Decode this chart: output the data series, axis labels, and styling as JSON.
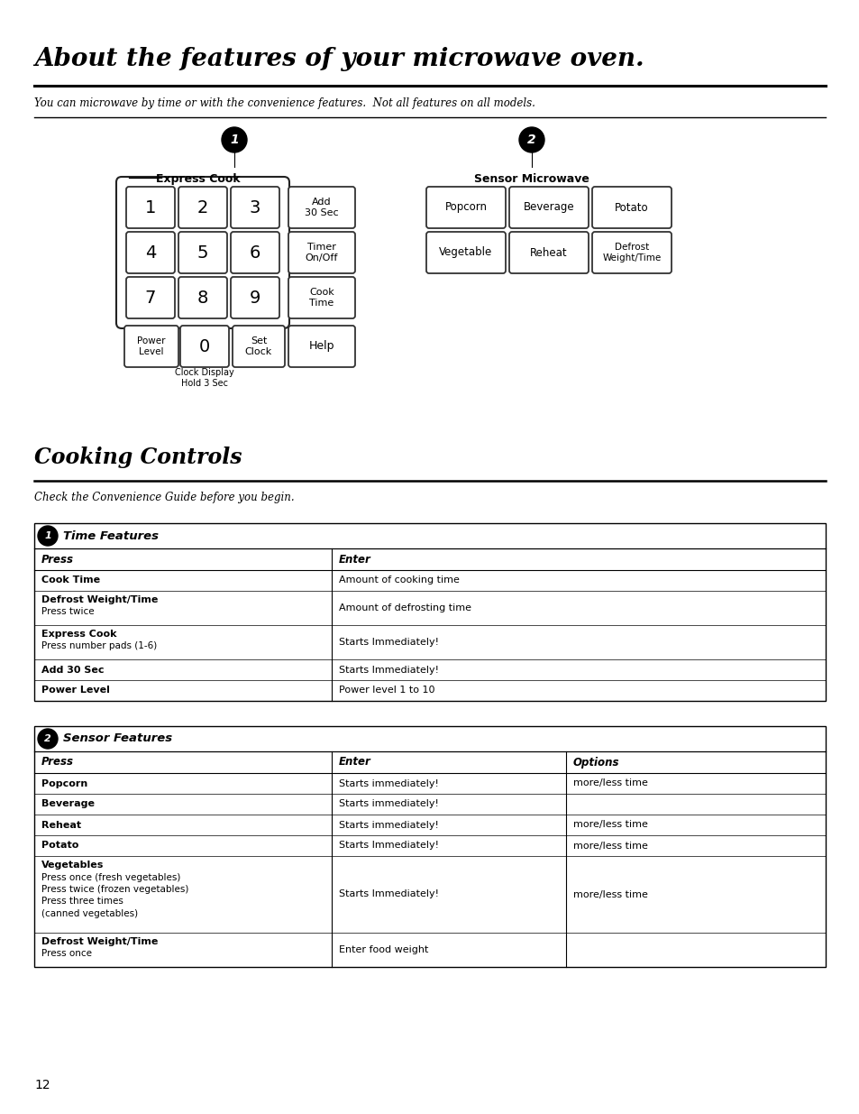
{
  "title": "About the features of your microwave oven.",
  "subtitle": "You can microwave by time or with the convenience features.  Not all features on all models.",
  "section2_title": "Cooking Controls",
  "section2_subtitle": "Check the Convenience Guide before you begin.",
  "table1_header_label": "Time Features",
  "table1_col1_header": "Press",
  "table1_col2_header": "Enter",
  "table1_rows": [
    [
      "Cook Time",
      "Amount of cooking time"
    ],
    [
      "Defrost Weight/Time\nPress twice",
      "Amount of defrosting time"
    ],
    [
      "Express Cook\nPress number pads (1-6)",
      "Starts Immediately!"
    ],
    [
      "Add 30 Sec",
      "Starts Immediately!"
    ],
    [
      "Power Level",
      "Power level 1 to 10"
    ]
  ],
  "table2_header_label": "Sensor Features",
  "table2_col1_header": "Press",
  "table2_col2_header": "Enter",
  "table2_col3_header": "Options",
  "table2_rows": [
    [
      "Popcorn",
      "Starts immediately!",
      "more/less time"
    ],
    [
      "Beverage",
      "Starts immediately!",
      ""
    ],
    [
      "Reheat",
      "Starts immediately!",
      "more/less time"
    ],
    [
      "Potato",
      "Starts Immediately!",
      "more/less time"
    ],
    [
      "Vegetables\nPress once (fresh vegetables)\nPress twice (frozen vegetables)\nPress three times\n(canned vegetables)",
      "Starts Immediately!",
      "more/less time"
    ],
    [
      "Defrost Weight/Time\nPress once",
      "Enter food weight",
      ""
    ]
  ],
  "bg_color": "#ffffff",
  "text_color": "#000000",
  "page_number": "12",
  "keypad_label1": "Express Cook",
  "keypad_label2": "Sensor Microwave",
  "sensor_keys_row1": [
    "Popcorn",
    "Beverage",
    "Potato"
  ],
  "sensor_keys_row2": [
    "Vegetable",
    "Reheat",
    "Defrost\nWeight/Time"
  ]
}
